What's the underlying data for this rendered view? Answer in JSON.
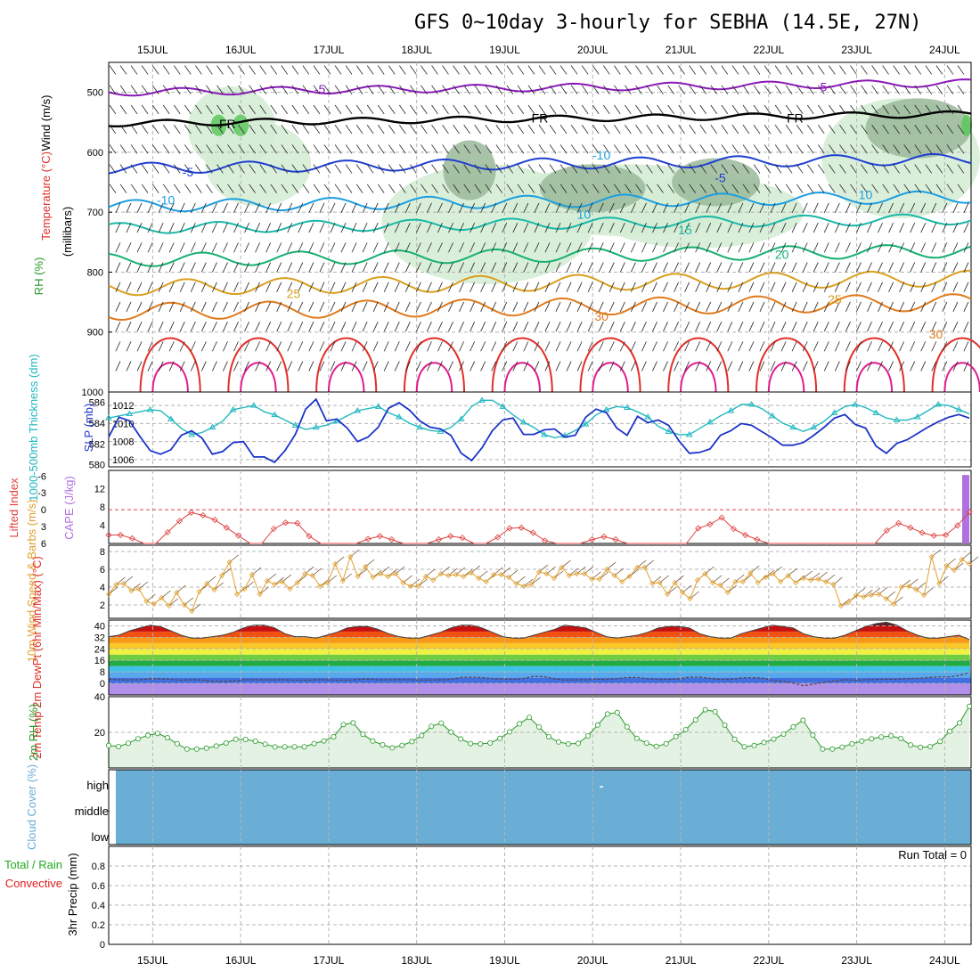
{
  "title": "GFS 0~10day 3-hourly for SEBHA (14.5E, 27N)",
  "colors": {
    "temp_cold": "#1f3fd0",
    "temp_cool": "#1c9ee0",
    "temp_mild": "#19b8a8",
    "temp_warm_a": "#16b070",
    "temp_warm_b": "#d9a020",
    "temp_hot_a": "#e07a1c",
    "temp_hot_b": "#e0302a",
    "temp_max": "#e01c8c",
    "freezing": "#000000",
    "neg5": "#8a18b8",
    "rh_fill": "#d4ecd4",
    "rh_dark": "#9ab89a",
    "rh_green": "#5cc85c",
    "slp": "#1c34c8",
    "thick": "#20b8c0",
    "li": "#e04040",
    "cape": "#b070e0",
    "wind": "#e0a030",
    "barb10": "#6a4a2a",
    "rh2m": "#2a9a2a",
    "cloud": "#6aaed6",
    "precip_total": "#22aa22",
    "precip_conv": "#e02020"
  },
  "chart_data": [
    {
      "type": "contour",
      "name": "upper-air",
      "ylabel_wind": "Wind (m/s)",
      "ylabel_temp": "Temperature (°C)",
      "ylabel_rh": "RH (%)",
      "ylabel_mb": "(millibars)",
      "yticks": [
        "500",
        "600",
        "700",
        "800",
        "900",
        "1000"
      ],
      "ylim": [
        450,
        1000
      ],
      "contour_labels": [
        {
          "text": "-5",
          "day": 16.9,
          "p": 502,
          "c": "neg5"
        },
        {
          "text": "-5",
          "day": 22.6,
          "p": 498,
          "c": "neg5"
        },
        {
          "text": "FR",
          "day": 15.85,
          "p": 560,
          "c": "freezing"
        },
        {
          "text": "FR",
          "day": 19.4,
          "p": 550,
          "c": "freezing"
        },
        {
          "text": "FR",
          "day": 22.3,
          "p": 550,
          "c": "freezing"
        },
        {
          "text": "-5",
          "day": 15.4,
          "p": 640,
          "c": "temp_cold"
        },
        {
          "text": "-5",
          "day": 21.45,
          "p": 650,
          "c": "temp_cold"
        },
        {
          "text": "-10",
          "day": 20.1,
          "p": 612,
          "c": "temp_cool"
        },
        {
          "text": "-10",
          "day": 15.15,
          "p": 687,
          "c": "temp_cool"
        },
        {
          "text": "10",
          "day": 19.9,
          "p": 711,
          "c": "temp_cool"
        },
        {
          "text": "10",
          "day": 23.1,
          "p": 678,
          "c": "temp_cool"
        },
        {
          "text": "15",
          "day": 21.05,
          "p": 737,
          "c": "temp_mild"
        },
        {
          "text": "20",
          "day": 22.15,
          "p": 778,
          "c": "temp_warm_a"
        },
        {
          "text": "25",
          "day": 16.6,
          "p": 843,
          "c": "temp_warm_b"
        },
        {
          "text": "25",
          "day": 22.75,
          "p": 853,
          "c": "temp_warm_b"
        },
        {
          "text": "30",
          "day": 20.1,
          "p": 881,
          "c": "temp_hot_a"
        },
        {
          "text": "30",
          "day": 23.9,
          "p": 911,
          "c": "temp_hot_a"
        }
      ]
    },
    {
      "type": "line",
      "name": "slp-thickness",
      "ylabel_left": "1000-500mb Thickness (dm)",
      "ylabel_right": "SLP (mb)",
      "yticks_left": [
        "586",
        "584",
        "582",
        "580"
      ],
      "yticks_right": [
        "1012",
        "1010",
        "1008",
        "1006"
      ],
      "slp_series": [
        1008.5,
        1010.7,
        1010.3,
        1008.6,
        1007,
        1006.6,
        1007.1,
        1008.7,
        1009.2,
        1008.4,
        1006.6,
        1006.9,
        1007.9,
        1008,
        1006.3,
        1006.3,
        1005.7,
        1007,
        1008.8,
        1011.6,
        1012.7,
        1010.3,
        1010.5,
        1009.5,
        1008,
        1008.5,
        1009.6,
        1011.7,
        1012.3,
        1011.5,
        1010.3,
        1009.6,
        1009.4,
        1008.7,
        1006.7,
        1005.9,
        1007.3,
        1009.2,
        1010.4,
        1010.6,
        1008.8,
        1008.8,
        1009.3,
        1009.4,
        1008.5,
        1008.7,
        1010.7,
        1011.6,
        1011.2,
        1009.5,
        1008.7,
        1010.8,
        1010.1,
        1010.4,
        1009.8,
        1008.1,
        1006.7,
        1006.8,
        1007.2,
        1008.7,
        1009.2,
        1010,
        1009.8,
        1009.1,
        1008.4,
        1007.6,
        1007.6,
        1007.9,
        1008.7,
        1009.6,
        1010.6,
        1011,
        1009.9,
        1009.5,
        1007.5,
        1006.7,
        1007.8,
        1008.2,
        1008.9,
        1009.6,
        1010.2,
        1010.7,
        1011,
        1010.6
      ],
      "thick_series": [
        584.5,
        584.7,
        584.9,
        585.1,
        585.3,
        585.2,
        584.4,
        583.5,
        582.9,
        583.1,
        583.6,
        584.2,
        585.3,
        585.5,
        585.7,
        585.1,
        584.8,
        584.3,
        583.8,
        583.4,
        583.6,
        583.8,
        584.2,
        584.7,
        585.2,
        585.4,
        585.6,
        585,
        584.6,
        584,
        583.6,
        583.3,
        583.2,
        583.6,
        584.4,
        585.6,
        586.2,
        586.2,
        585.6,
        584.8,
        584.1,
        583.6,
        582.9,
        582.6,
        582.8,
        583.3,
        583.9,
        584.8,
        585.3,
        585.6,
        585.5,
        585.1,
        584.6,
        583.7,
        583.2,
        582.9,
        582.9,
        583.5,
        584.1,
        584.7,
        585.2,
        585.8,
        585.8,
        585.4,
        584.7,
        584,
        583.6,
        583.2,
        583.6,
        584.2,
        585,
        585.6,
        585.8,
        585.5,
        585,
        584.5,
        584.3,
        584.3,
        584.6,
        585.2,
        585.8,
        585.7,
        585.3,
        584.9
      ]
    },
    {
      "type": "line",
      "name": "li-cape",
      "ylabel_left": "Lifted Index",
      "ylabel_right": "CAPE (J/kg)",
      "yticks_left": [
        "-6",
        "-3",
        "0",
        "3",
        "6"
      ],
      "yticks_right": [
        "12",
        "8",
        "4"
      ],
      "li_series": [
        4.5,
        4.5,
        5.1,
        6,
        6,
        4,
        2,
        0.5,
        1,
        1.8,
        3.2,
        4.6,
        6,
        6,
        3.4,
        2.3,
        2.4,
        4.7,
        6,
        6,
        6,
        6,
        5.2,
        4.7,
        5.3,
        6,
        6,
        6,
        5.3,
        4.7,
        5,
        6,
        6,
        4.9,
        3.3,
        3.2,
        4.1,
        5.5,
        6,
        6,
        6,
        5.3,
        4.8,
        5.3,
        6,
        6,
        6,
        6,
        6,
        6,
        3.3,
        2.6,
        1.4,
        3.4,
        4.5,
        5.3,
        6,
        6,
        6,
        6,
        6,
        6,
        6,
        6,
        6,
        6,
        3.7,
        2.4,
        3.2,
        4.1,
        4.6,
        4.5,
        2.8,
        0.4
      ],
      "cape_bar_value": 15
    },
    {
      "type": "line",
      "name": "wind10m",
      "ylabel": "10m Wind Speed & Barbs (m/s)",
      "yticks": [
        "8",
        "6",
        "4",
        "2"
      ],
      "speed_series": [
        3.2,
        4.3,
        4.4,
        3.6,
        3.8,
        2.4,
        2.1,
        2.8,
        1.9,
        3.4,
        2,
        1.3,
        3.5,
        4.4,
        3.7,
        5.3,
        6.8,
        3.2,
        3.8,
        5.4,
        3.2,
        4.7,
        4.3,
        4.6,
        3.8,
        4.5,
        5.5,
        5.3,
        4.1,
        4.5,
        6.6,
        4.7,
        7.4,
        5.2,
        6.3,
        5.1,
        5.5,
        5.2,
        5.5,
        4.5,
        4.1,
        4.1,
        5.2,
        4.8,
        5.5,
        5.3,
        5.4,
        5.2,
        5.6,
        5,
        4.6,
        5.4,
        5.4,
        5.1,
        4.4,
        4.1,
        4.3,
        5.7,
        5.5,
        5,
        6.2,
        5.3,
        5.5,
        5.5,
        4.9,
        4.9,
        6,
        5.3,
        4.6,
        5.2,
        6.2,
        6.2,
        4.4,
        4.5,
        3.2,
        4.5,
        3.4,
        2.7,
        4.8,
        5.5,
        4.5,
        4.2,
        3.4,
        4.6,
        4.6,
        5.6,
        4.5,
        5.1,
        5.5,
        4.6,
        5.3,
        4.5,
        5,
        4.8,
        4.9,
        4.6,
        4.3,
        1.9,
        2.3,
        3.1,
        2.9,
        3.1,
        3.2,
        2.7,
        2.1,
        4,
        4.1,
        3.7,
        3.1,
        7.4,
        4.4,
        6.4,
        5.9,
        7.1,
        6.6
      ]
    },
    {
      "type": "area",
      "name": "temp2m",
      "ylabel": "2m Temp 2m DewPt (6hr Min/Max) (°C)",
      "yticks": [
        "40",
        "32",
        "24",
        "16",
        "8",
        "0"
      ],
      "temp_series": [
        32.5,
        33.5,
        36.5,
        38.5,
        40.5,
        39.5,
        36.5,
        33.5,
        31.5,
        31.5,
        32.5,
        33.5,
        35.5,
        38.5,
        40.5,
        40.5,
        38.5,
        34.5,
        32.5,
        32.5,
        31.5,
        33.5,
        35.5,
        38.5,
        39.5,
        39.5,
        37.5,
        34.5,
        32.5,
        31.5,
        31.5,
        33.5,
        35.5,
        38.5,
        40.5,
        40.5,
        38.5,
        35.5,
        32.5,
        31.5,
        31.5,
        33.5,
        35.5,
        37.5,
        40.5,
        39.5,
        38.5,
        35.5,
        32.5,
        31.5,
        32.5,
        33.5,
        35.5,
        38.5,
        39.5,
        39.5,
        38.5,
        34.5,
        32.5,
        31.5,
        31.5,
        34.5,
        36.5,
        38.5,
        40.5,
        39.5,
        38.5,
        34.5,
        32.5,
        31.5,
        31.5,
        33.5,
        36.5,
        39.5,
        41.5,
        42.5,
        40.5,
        36.5,
        33.5,
        31.5,
        31.5,
        32.5,
        33.5,
        30.5
      ],
      "dew_series": [
        3,
        2.5,
        2.4,
        2.6,
        3.2,
        3.2,
        2.7,
        2.2,
        2.6,
        2.4,
        1.5,
        1.5,
        1.6,
        2.5,
        2.5,
        2.5,
        2.4,
        2.6,
        2.3,
        2.2,
        2.5,
        2.5,
        2.3,
        2.2,
        2.7,
        3,
        2.5,
        2.5,
        2.7,
        2.6,
        2.3,
        2.3,
        2.5,
        2.7,
        4.2,
        4.3,
        4,
        3.4,
        3.1,
        2.7,
        3.4,
        5,
        4.7,
        3.1,
        2.3,
        2.5,
        2.6,
        2.9,
        2.7,
        3.3,
        4.1,
        4.2,
        3.2,
        2.8,
        2.7,
        3.2,
        4.4,
        4.3,
        3.5,
        2.8,
        2.8,
        3.9,
        4,
        3.7,
        2.1,
        1.5,
        0.3,
        -1.6,
        -0.5,
        0.8,
        1.7,
        2.5,
        2.2,
        2.5,
        2.7,
        2.9,
        2.8,
        3.3,
        3.5,
        4,
        4.5,
        4.5,
        5.5,
        7.5
      ]
    },
    {
      "type": "area",
      "name": "rh2m",
      "ylabel": "2m RH (%)",
      "yticks": [
        "40",
        "20"
      ],
      "rh_series": [
        12.6,
        12,
        13.9,
        16.4,
        18.3,
        19.4,
        17,
        13.6,
        10.6,
        10.6,
        11.1,
        12.3,
        14,
        16.1,
        16,
        15,
        13.4,
        11.8,
        11.9,
        11.9,
        11.9,
        13.7,
        15.2,
        17.5,
        24.4,
        25.3,
        18.9,
        15.1,
        13,
        11.3,
        12.7,
        14.8,
        18.2,
        23.4,
        25.2,
        20.1,
        16.3,
        13.7,
        13.5,
        14,
        16.6,
        20.3,
        24.8,
        28.4,
        23,
        17.5,
        14.6,
        13.5,
        13.8,
        18,
        24.1,
        30.3,
        31.1,
        23.1,
        16.6,
        14,
        12.1,
        13.6,
        17.6,
        21.5,
        27,
        32.7,
        31.6,
        24,
        16.1,
        11.9,
        12.6,
        14.3,
        16.2,
        19,
        23.1,
        26.8,
        18.5,
        10.6,
        10.6,
        11.7,
        13.6,
        15.1,
        16.4,
        17.4,
        18,
        16.5,
        12.9,
        11.6,
        12,
        14.9,
        20.6,
        25.3,
        34.6
      ],
      "rh_shaded": "lt-40"
    },
    {
      "type": "bar",
      "name": "cloud",
      "ylabel": "Cloud Cover (%)",
      "levels": [
        "high",
        "middle",
        "low"
      ],
      "marks": [
        {
          "day": 20.1,
          "level": "high",
          "value": "-"
        }
      ]
    },
    {
      "type": "bar",
      "name": "precip",
      "ylabel_total": "Total / Rain",
      "ylabel_conv": "Convective",
      "ylabel": "3hr Precip (mm)",
      "yticks": [
        "0.8",
        "0.6",
        "0.4",
        "0.2",
        "0"
      ],
      "run_total_label": "Run Total = 0",
      "values": []
    }
  ],
  "x_axis": {
    "labels": [
      "15JUL",
      "16JUL",
      "17JUL",
      "18JUL",
      "19JUL",
      "20JUL",
      "21JUL",
      "22JUL",
      "23JUL",
      "24JUL"
    ],
    "start_day": 14.5,
    "end_day": 24.3
  }
}
